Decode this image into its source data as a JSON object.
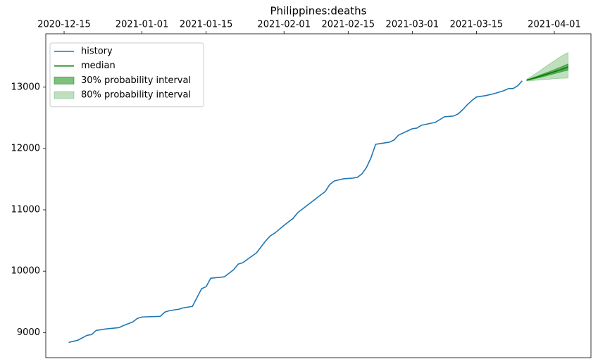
{
  "chart_data": {
    "type": "line",
    "title": "Philippines:deaths",
    "xlim": [
      "2020-12-11",
      "2021-04-09"
    ],
    "xticks": [
      "2020-12-15",
      "2021-01-01",
      "2021-01-15",
      "2021-02-01",
      "2021-02-15",
      "2021-03-01",
      "2021-03-15",
      "2021-04-01"
    ],
    "ylim": [
      8590,
      13870
    ],
    "yticks": [
      9000,
      10000,
      11000,
      12000,
      13000
    ],
    "x_axis_position": "top",
    "grid": false,
    "legend": "upper left",
    "series": [
      {
        "name": "history",
        "color": "#1f77b4",
        "x": [
          "2020-12-16",
          "2020-12-18",
          "2020-12-20",
          "2020-12-21",
          "2020-12-22",
          "2020-12-24",
          "2020-12-27",
          "2020-12-28",
          "2020-12-30",
          "2020-12-31",
          "2021-01-01",
          "2021-01-05",
          "2021-01-06",
          "2021-01-07",
          "2021-01-09",
          "2021-01-10",
          "2021-01-12",
          "2021-01-14",
          "2021-01-15",
          "2021-01-16",
          "2021-01-19",
          "2021-01-21",
          "2021-01-22",
          "2021-01-23",
          "2021-01-26",
          "2021-01-28",
          "2021-01-29",
          "2021-01-30",
          "2021-02-01",
          "2021-02-03",
          "2021-02-04",
          "2021-02-06",
          "2021-02-08",
          "2021-02-10",
          "2021-02-11",
          "2021-02-12",
          "2021-02-14",
          "2021-02-16",
          "2021-02-17",
          "2021-02-18",
          "2021-02-19",
          "2021-02-20",
          "2021-02-21",
          "2021-02-22",
          "2021-02-24",
          "2021-02-25",
          "2021-02-26",
          "2021-02-28",
          "2021-03-01",
          "2021-03-02",
          "2021-03-03",
          "2021-03-06",
          "2021-03-08",
          "2021-03-10",
          "2021-03-11",
          "2021-03-12",
          "2021-03-13",
          "2021-03-14",
          "2021-03-15",
          "2021-03-17",
          "2021-03-19",
          "2021-03-20",
          "2021-03-21",
          "2021-03-22",
          "2021-03-23",
          "2021-03-24",
          "2021-03-25"
        ],
        "values": [
          8839,
          8874,
          8954,
          8966,
          9034,
          9057,
          9080,
          9115,
          9172,
          9230,
          9253,
          9264,
          9333,
          9356,
          9379,
          9402,
          9425,
          9713,
          9747,
          9885,
          9908,
          10023,
          10115,
          10138,
          10299,
          10494,
          10575,
          10621,
          10747,
          10862,
          10954,
          11069,
          11184,
          11299,
          11414,
          11471,
          11506,
          11517,
          11529,
          11586,
          11690,
          11851,
          12069,
          12080,
          12103,
          12138,
          12218,
          12287,
          12322,
          12333,
          12379,
          12425,
          12517,
          12529,
          12563,
          12632,
          12713,
          12782,
          12839,
          12862,
          12897,
          12920,
          12943,
          12977,
          12977,
          13023,
          13103
        ]
      },
      {
        "name": "median",
        "color": "#008000",
        "x": [
          "2021-03-26",
          "2021-03-27",
          "2021-03-28",
          "2021-03-29",
          "2021-03-30",
          "2021-03-31",
          "2021-04-01",
          "2021-04-02",
          "2021-04-03",
          "2021-04-04"
        ],
        "values": [
          13115,
          13135,
          13158,
          13180,
          13205,
          13228,
          13252,
          13275,
          13300,
          13330
        ]
      }
    ],
    "bands": [
      {
        "name": "30% probability interval",
        "color": "#008000",
        "opacity": 0.5,
        "x": [
          "2021-03-26",
          "2021-03-27",
          "2021-03-28",
          "2021-03-29",
          "2021-03-30",
          "2021-03-31",
          "2021-04-01",
          "2021-04-02",
          "2021-04-03",
          "2021-04-04"
        ],
        "lower": [
          13110,
          13125,
          13143,
          13160,
          13180,
          13200,
          13220,
          13240,
          13260,
          13276
        ],
        "upper": [
          13120,
          13145,
          13172,
          13200,
          13228,
          13255,
          13285,
          13315,
          13345,
          13379
        ]
      },
      {
        "name": "80% probability interval",
        "color": "#008000",
        "opacity": 0.25,
        "x": [
          "2021-03-26",
          "2021-03-27",
          "2021-03-28",
          "2021-03-29",
          "2021-03-30",
          "2021-03-31",
          "2021-04-01",
          "2021-04-02",
          "2021-04-03",
          "2021-04-04"
        ],
        "lower": [
          13100,
          13105,
          13112,
          13118,
          13124,
          13130,
          13138,
          13142,
          13146,
          13149
        ],
        "upper": [
          13130,
          13175,
          13225,
          13275,
          13330,
          13380,
          13430,
          13480,
          13525,
          13563
        ]
      }
    ]
  }
}
